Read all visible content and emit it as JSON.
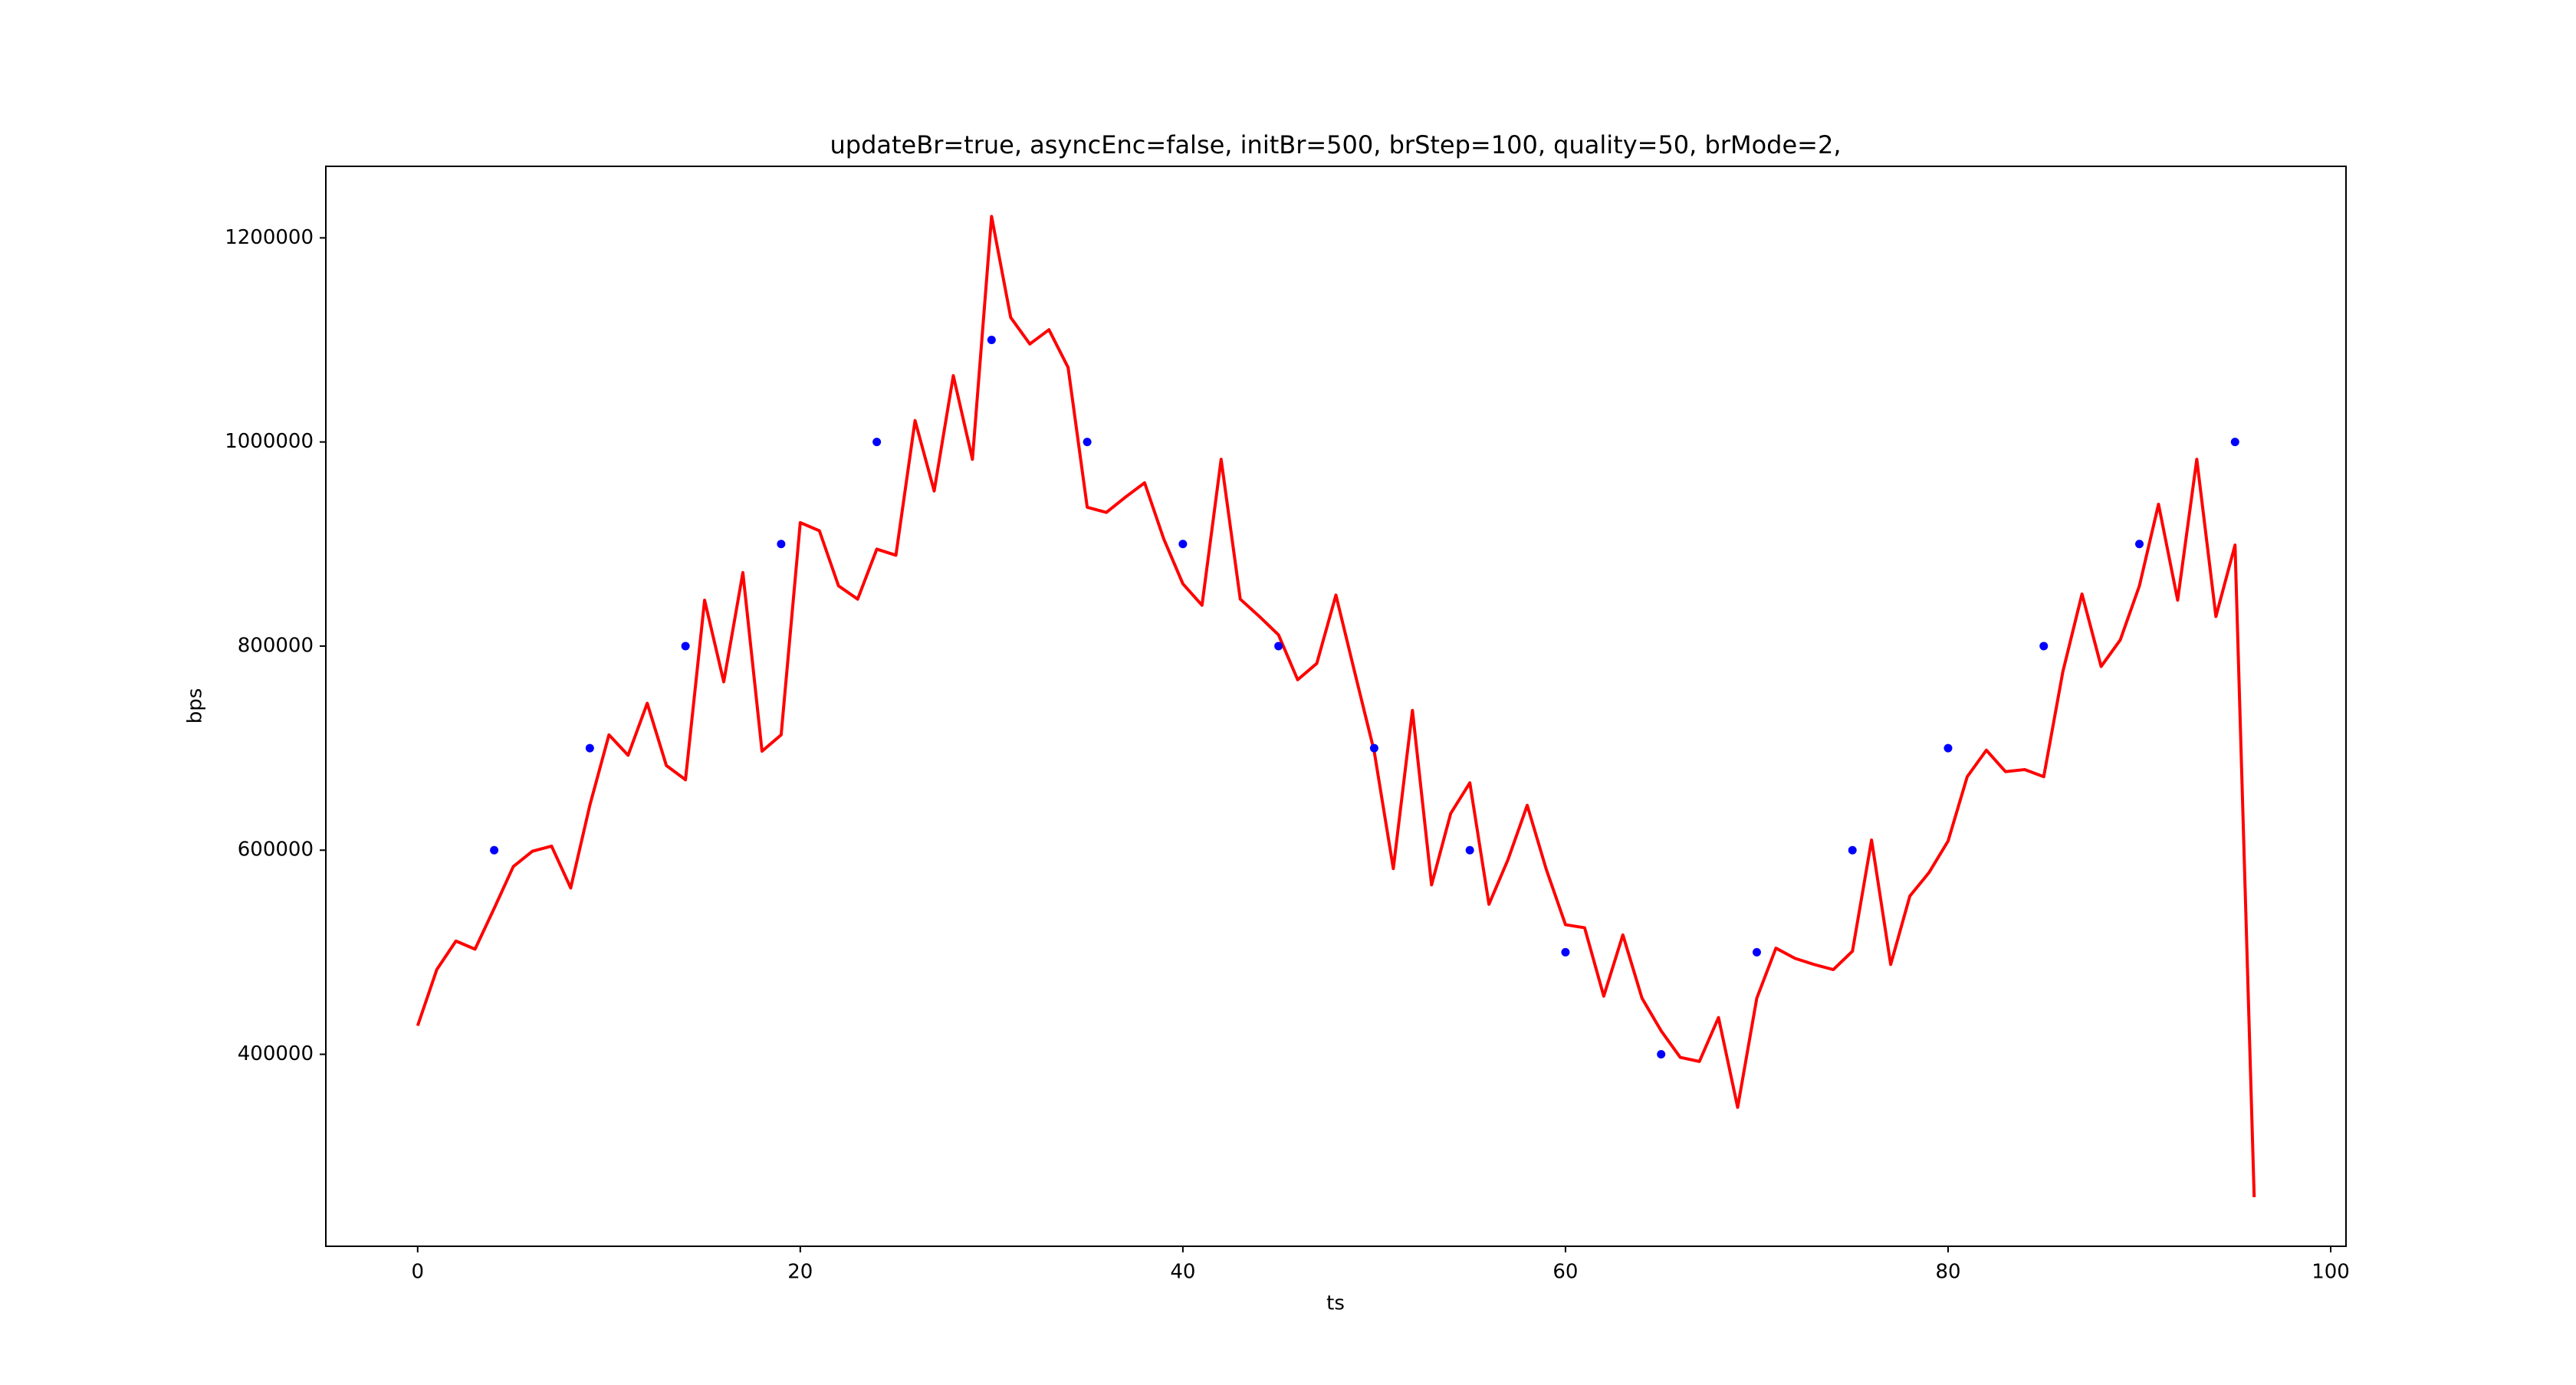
{
  "chart_data": {
    "type": "line",
    "title": "updateBr=true, asyncEnc=false, initBr=500, brStep=100, quality=50, brMode=2,",
    "x_label": "ts",
    "y_label": "bps",
    "xlim": [
      -4.8,
      100.8
    ],
    "xticks": [
      0,
      20,
      40,
      60,
      80,
      100
    ],
    "ylim": [
      211900,
      1270100
    ],
    "yticks": [
      400000,
      600000,
      800000,
      1000000,
      1200000
    ],
    "grid": false,
    "series": [
      {
        "type": "line",
        "color": "#ff0000",
        "x": [
          0,
          1,
          2,
          3,
          4,
          5,
          6,
          7,
          8,
          9,
          10,
          11,
          12,
          13,
          14,
          15,
          16,
          17,
          18,
          19,
          20,
          21,
          22,
          23,
          24,
          25,
          26,
          27,
          28,
          29,
          30,
          31,
          32,
          33,
          34,
          35,
          36,
          37,
          38,
          39,
          40,
          41,
          42,
          43,
          44,
          45,
          46,
          47,
          48,
          49,
          50,
          51,
          52,
          53,
          54,
          55,
          56,
          57,
          58,
          59,
          60,
          61,
          62,
          63,
          64,
          65,
          66,
          67,
          68,
          69,
          70,
          71,
          72,
          73,
          74,
          75,
          76,
          77,
          78,
          79,
          80,
          81,
          82,
          83,
          84,
          85,
          86,
          87,
          88,
          89,
          90,
          91,
          92,
          93,
          94,
          95,
          96
        ],
        "values": [
          428000,
          483000,
          511000,
          503000,
          543000,
          584000,
          599000,
          604000,
          563000,
          644000,
          713000,
          693000,
          744000,
          683000,
          669000,
          845000,
          765000,
          872000,
          697000,
          713000,
          921000,
          913000,
          859000,
          846000,
          895000,
          889000,
          1021000,
          952000,
          1065000,
          983000,
          1221000,
          1122000,
          1096000,
          1110000,
          1073000,
          936000,
          931000,
          946000,
          960000,
          905000,
          861000,
          840000,
          983000,
          846000,
          829000,
          811000,
          767000,
          783000,
          850000,
          773000,
          697000,
          582000,
          737000,
          566000,
          636000,
          666000,
          547000,
          591000,
          644000,
          581000,
          527000,
          524000,
          457000,
          517000,
          455000,
          423000,
          397000,
          393000,
          436000,
          348000,
          455000,
          504000,
          494000,
          488000,
          483000,
          501000,
          610000,
          488000,
          555000,
          578000,
          609000,
          672000,
          698000,
          677000,
          679000,
          672000,
          775000,
          851000,
          780000,
          806000,
          859000,
          939000,
          845000,
          983000,
          829000,
          899000,
          260000
        ]
      },
      {
        "type": "scatter",
        "color": "#0000ff",
        "x": [
          4,
          9,
          14,
          19,
          24,
          30,
          35,
          40,
          45,
          50,
          55,
          60,
          65,
          70,
          75,
          80,
          85,
          90,
          95
        ],
        "values": [
          600000,
          700000,
          800000,
          900000,
          1000000,
          1100000,
          1000000,
          900000,
          800000,
          700000,
          600000,
          500000,
          400000,
          500000,
          600000,
          700000,
          800000,
          900000,
          1000000
        ]
      }
    ]
  }
}
